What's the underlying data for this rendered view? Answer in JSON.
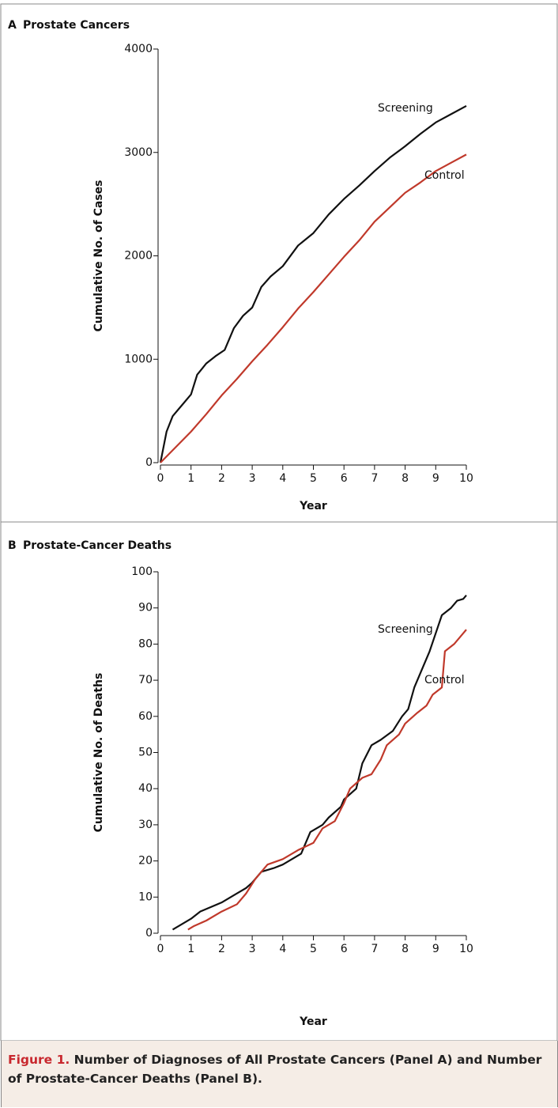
{
  "chart_data": [
    {
      "type": "line",
      "panel": "A",
      "title": "Prostate Cancers",
      "xlabel": "Year",
      "ylabel": "Cumulative No. of Cases",
      "xlim": [
        0,
        10
      ],
      "xticks": [
        0,
        1,
        2,
        3,
        4,
        5,
        6,
        7,
        8,
        9,
        10
      ],
      "ylim": [
        0,
        4000
      ],
      "yticks": [
        0,
        1000,
        2000,
        3000,
        4000
      ],
      "series": [
        {
          "name": "Screening",
          "color": "#111111",
          "x": [
            0,
            0.2,
            0.4,
            0.6,
            0.8,
            1.0,
            1.2,
            1.5,
            1.8,
            2.1,
            2.4,
            2.7,
            3.0,
            3.3,
            3.6,
            4.0,
            4.5,
            5.0,
            5.5,
            6.0,
            6.5,
            7.0,
            7.5,
            8.0,
            8.5,
            9.0,
            9.5,
            10
          ],
          "values": [
            0,
            300,
            450,
            520,
            590,
            660,
            850,
            960,
            1030,
            1090,
            1300,
            1420,
            1500,
            1700,
            1800,
            1900,
            2100,
            2220,
            2400,
            2550,
            2680,
            2820,
            2950,
            3060,
            3180,
            3290,
            3370,
            3450
          ]
        },
        {
          "name": "Control",
          "color": "#c0392b",
          "x": [
            0,
            0.5,
            1,
            1.5,
            2,
            2.5,
            3,
            3.5,
            4,
            4.5,
            5,
            5.5,
            6,
            6.5,
            7,
            7.5,
            8,
            8.5,
            9,
            9.5,
            10
          ],
          "values": [
            0,
            150,
            300,
            470,
            650,
            810,
            980,
            1140,
            1310,
            1490,
            1650,
            1820,
            1990,
            2150,
            2330,
            2470,
            2610,
            2710,
            2820,
            2900,
            2980
          ]
        }
      ]
    },
    {
      "type": "line",
      "panel": "B",
      "title": "Prostate-Cancer Deaths",
      "xlabel": "Year",
      "ylabel": "Cumulative No. of Deaths",
      "xlim": [
        0,
        10
      ],
      "xticks": [
        0,
        1,
        2,
        3,
        4,
        5,
        6,
        7,
        8,
        9,
        10
      ],
      "ylim": [
        0,
        100
      ],
      "yticks": [
        0,
        10,
        20,
        30,
        40,
        50,
        60,
        70,
        80,
        90,
        100
      ],
      "series": [
        {
          "name": "Screening",
          "color": "#111111",
          "x": [
            0.4,
            1.0,
            1.3,
            2.0,
            2.5,
            2.8,
            3.0,
            3.3,
            3.7,
            4.0,
            4.6,
            4.9,
            5.3,
            5.5,
            5.9,
            6.0,
            6.4,
            6.6,
            6.9,
            7.2,
            7.6,
            7.9,
            8.1,
            8.3,
            8.5,
            8.8,
            9.0,
            9.2,
            9.5,
            9.7,
            9.9,
            10
          ],
          "values": [
            1,
            4,
            6,
            8.5,
            11,
            12.5,
            14,
            17,
            18,
            19,
            22,
            28,
            30,
            32,
            35,
            37,
            40,
            47,
            52,
            53.5,
            56,
            60,
            62,
            68,
            72,
            78,
            83,
            88,
            90,
            92,
            92.5,
            93.5
          ]
        },
        {
          "name": "Control",
          "color": "#c0392b",
          "x": [
            0.9,
            1.1,
            1.5,
            2.0,
            2.5,
            2.8,
            3.1,
            3.5,
            4.0,
            4.5,
            5.0,
            5.3,
            5.7,
            6.0,
            6.2,
            6.6,
            6.9,
            7.2,
            7.4,
            7.8,
            8.0,
            8.4,
            8.7,
            8.9,
            9.2,
            9.3,
            9.6,
            9.9,
            10
          ],
          "values": [
            1,
            2,
            3.5,
            6,
            8,
            11,
            15,
            19,
            20.5,
            23,
            25,
            29,
            31,
            36,
            40,
            43,
            44,
            48,
            52,
            55,
            58,
            61,
            63,
            66,
            68,
            78,
            80,
            83,
            84
          ]
        }
      ]
    }
  ],
  "caption": {
    "label": "Figure 1.",
    "text": "Number of Diagnoses of All Prostate Cancers (Panel A) and Number of Prostate-Cancer Deaths (Panel B)."
  }
}
